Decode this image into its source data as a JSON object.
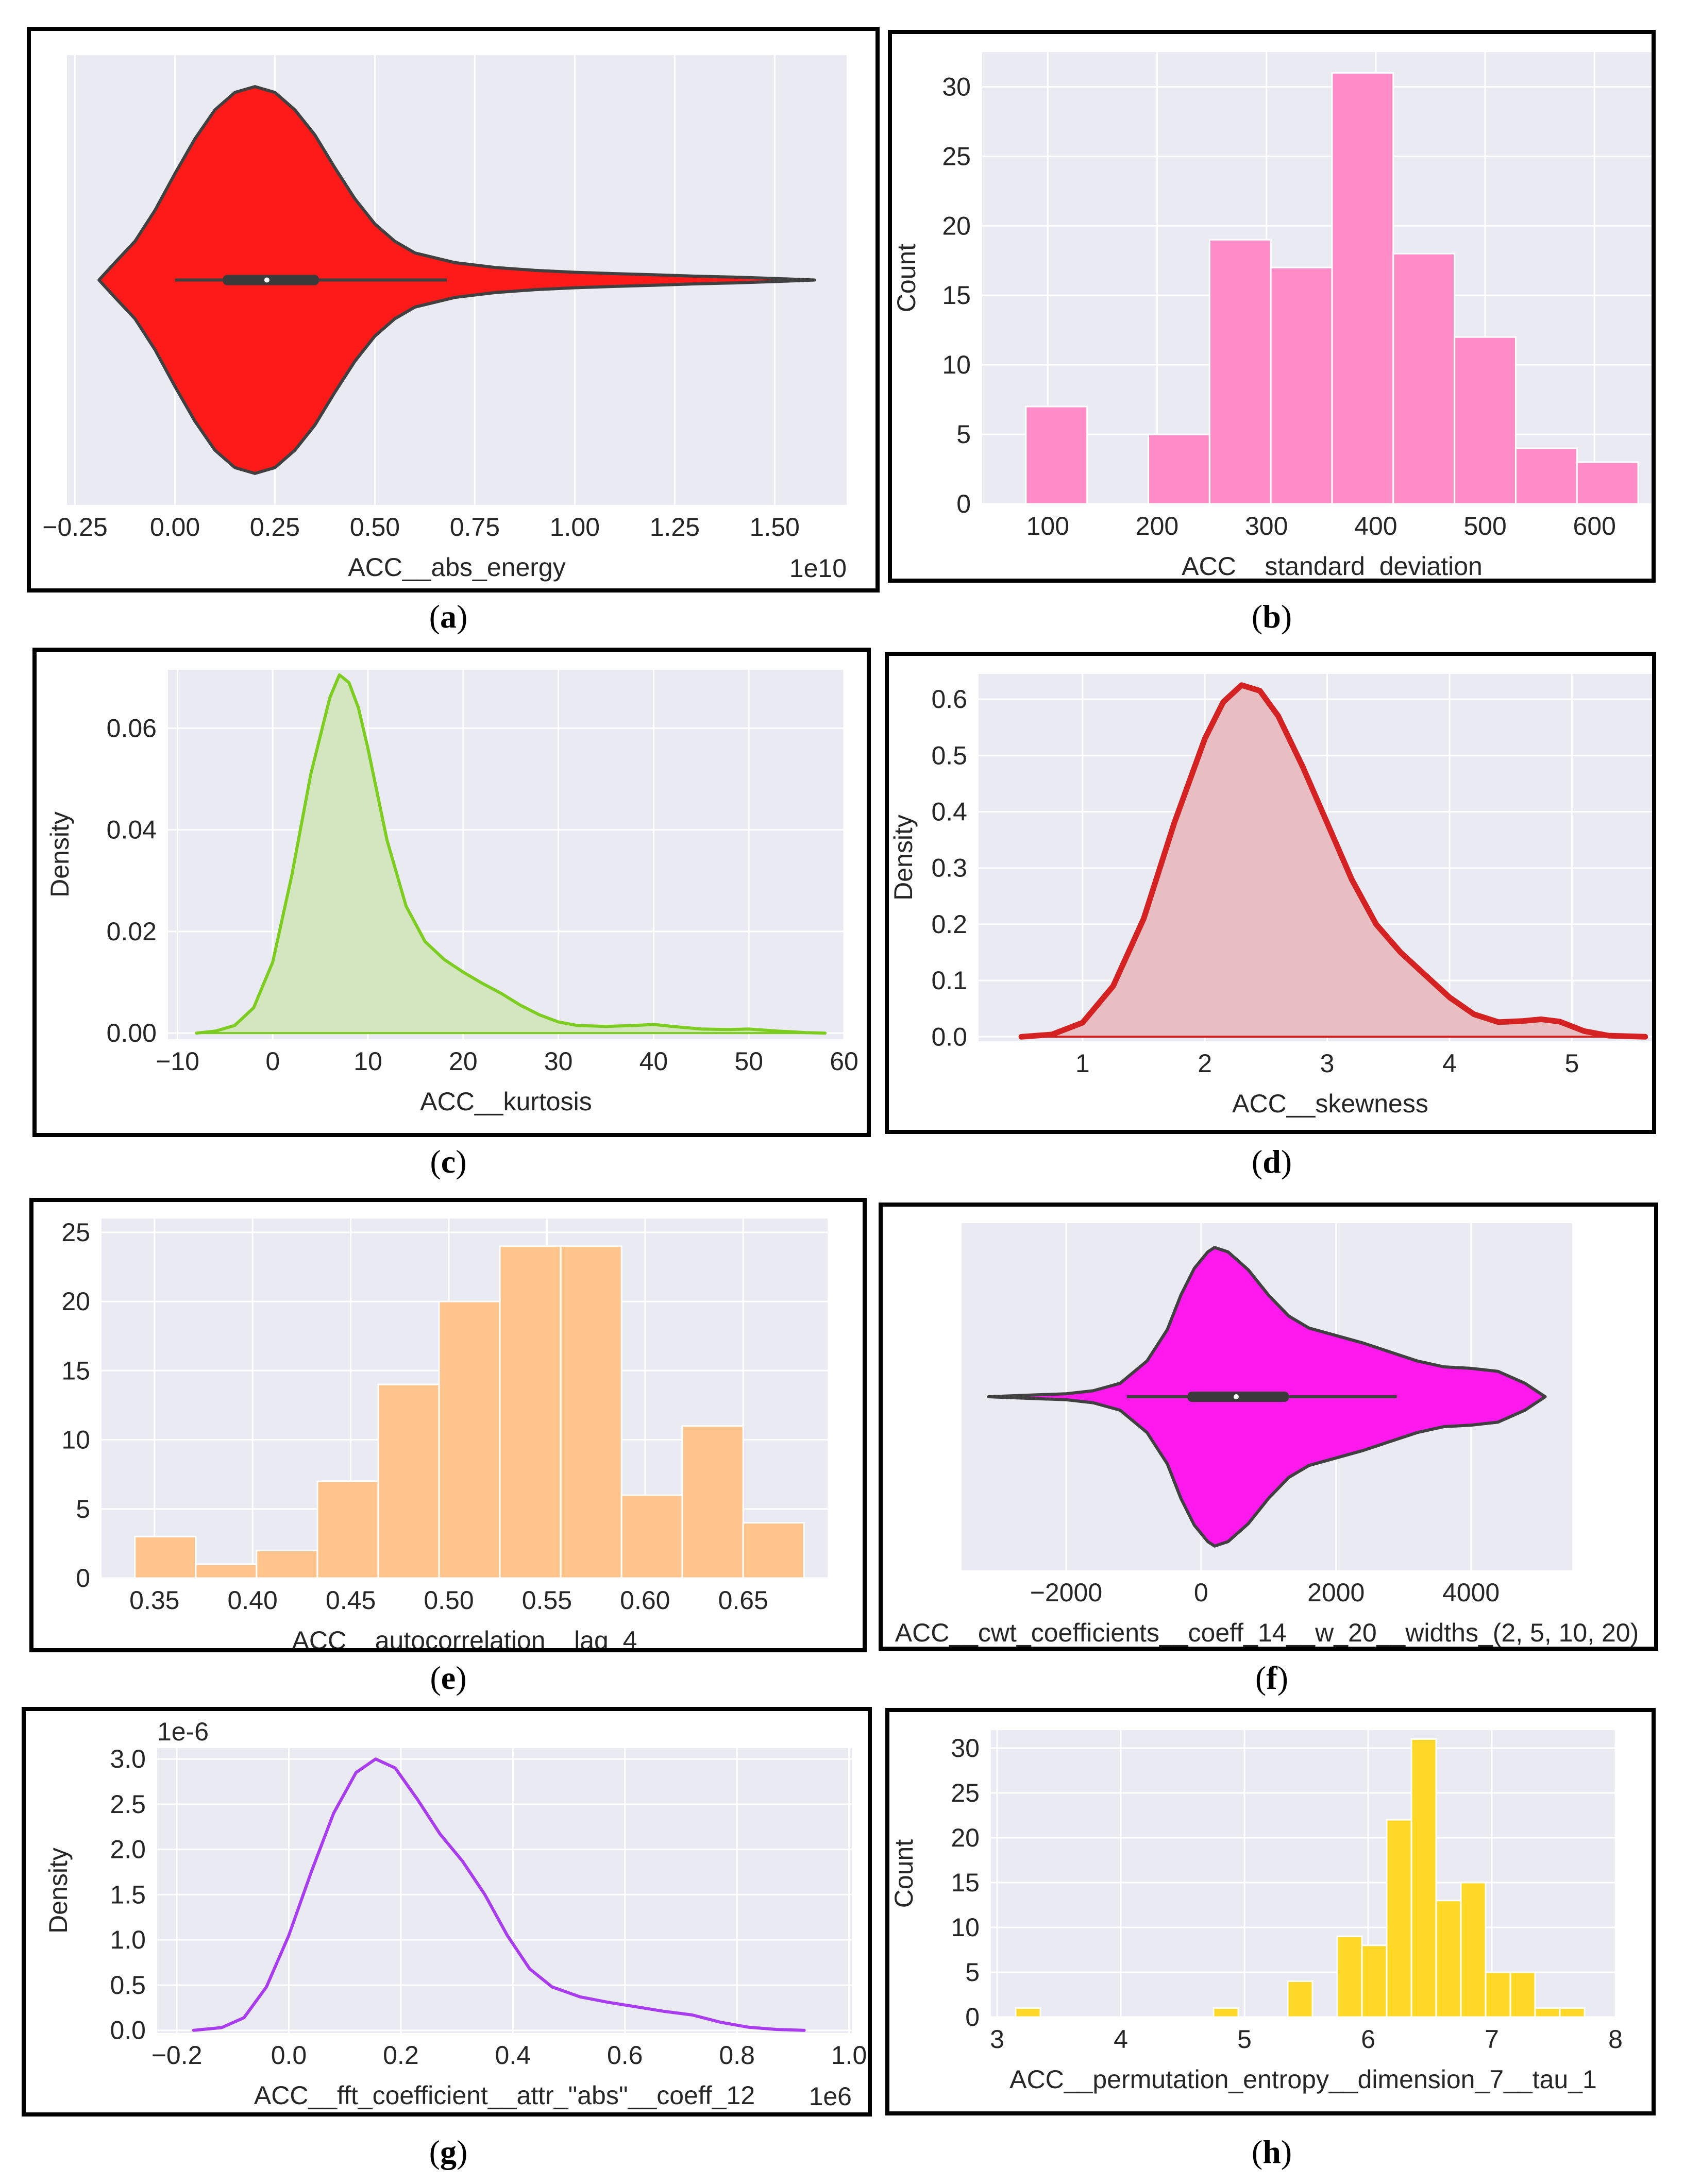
{
  "panel_labels": [
    {
      "open": "(",
      "letter": "a",
      "close": ")"
    },
    {
      "open": "(",
      "letter": "b",
      "close": ")"
    },
    {
      "open": "(",
      "letter": "c",
      "close": ")"
    },
    {
      "open": "(",
      "letter": "d",
      "close": ")"
    },
    {
      "open": "(",
      "letter": "e",
      "close": ")"
    },
    {
      "open": "(",
      "letter": "f",
      "close": ")"
    },
    {
      "open": "(",
      "letter": "g",
      "close": ")"
    },
    {
      "open": "(",
      "letter": "h",
      "close": ")"
    }
  ],
  "chart_data": [
    {
      "id": "a",
      "type": "violin",
      "orientation": "horizontal",
      "xlabel": "ACC__abs_energy",
      "ylabel": "",
      "offset_text": "1e10",
      "xlim": [
        -0.27,
        1.68
      ],
      "ylim": [
        -1,
        1
      ],
      "xticks": [
        -0.25,
        0.0,
        0.25,
        0.5,
        0.75,
        1.0,
        1.25,
        1.5
      ],
      "xtick_labels": [
        "−0.25",
        "0.00",
        "0.25",
        "0.50",
        "0.75",
        "1.00",
        "1.25",
        "1.50"
      ],
      "grid": true,
      "color": "#FF1A1A",
      "profile": [
        [
          -0.19,
          0.0
        ],
        [
          -0.15,
          0.09
        ],
        [
          -0.1,
          0.2
        ],
        [
          -0.05,
          0.36
        ],
        [
          0.0,
          0.55
        ],
        [
          0.05,
          0.73
        ],
        [
          0.1,
          0.88
        ],
        [
          0.15,
          0.97
        ],
        [
          0.2,
          1.0
        ],
        [
          0.25,
          0.97
        ],
        [
          0.3,
          0.88
        ],
        [
          0.35,
          0.75
        ],
        [
          0.4,
          0.58
        ],
        [
          0.45,
          0.42
        ],
        [
          0.5,
          0.29
        ],
        [
          0.55,
          0.2
        ],
        [
          0.6,
          0.14
        ],
        [
          0.7,
          0.09
        ],
        [
          0.8,
          0.065
        ],
        [
          0.9,
          0.05
        ],
        [
          1.0,
          0.04
        ],
        [
          1.1,
          0.033
        ],
        [
          1.2,
          0.027
        ],
        [
          1.3,
          0.02
        ],
        [
          1.4,
          0.015
        ],
        [
          1.5,
          0.008
        ],
        [
          1.6,
          0.0
        ]
      ],
      "whisker": [
        0.0,
        0.68
      ],
      "box": [
        0.12,
        0.36
      ],
      "median": 0.23
    },
    {
      "id": "b",
      "type": "histogram",
      "xlabel": "ACC__standard_deviation",
      "ylabel": "Count",
      "xlim": [
        40,
        680
      ],
      "ylim": [
        0,
        32.5
      ],
      "xticks": [
        100,
        200,
        300,
        400,
        500,
        600
      ],
      "xtick_labels": [
        "100",
        "200",
        "300",
        "400",
        "500",
        "600"
      ],
      "yticks": [
        0,
        5,
        10,
        15,
        20,
        25,
        30
      ],
      "ytick_labels": [
        "0",
        "5",
        "10",
        "15",
        "20",
        "25",
        "30"
      ],
      "grid": true,
      "color": "#FF8CC6",
      "bin_edges": [
        80,
        136,
        192,
        248,
        304,
        360,
        416,
        472,
        528,
        584,
        640
      ],
      "counts": [
        7,
        0,
        5,
        19,
        17,
        31,
        18,
        12,
        4,
        3
      ]
    },
    {
      "id": "c",
      "type": "kde",
      "xlabel": "ACC__kurtosis",
      "ylabel": "Density",
      "xlim": [
        -11,
        60
      ],
      "ylim": [
        -0.0012,
        0.0715
      ],
      "xticks": [
        -10,
        0,
        10,
        20,
        30,
        40,
        50,
        60
      ],
      "xtick_labels": [
        "−10",
        "0",
        "10",
        "20",
        "30",
        "40",
        "50",
        "60"
      ],
      "yticks": [
        0.0,
        0.02,
        0.04,
        0.06
      ],
      "ytick_labels": [
        "0.00",
        "0.02",
        "0.04",
        "0.06"
      ],
      "grid": true,
      "color": "#7CCD1F",
      "fill": "#D3E6BF",
      "x": [
        -8,
        -6,
        -4,
        -2,
        0,
        2,
        4,
        6,
        7,
        8,
        9,
        10,
        11,
        12,
        14,
        16,
        18,
        20,
        22,
        24,
        26,
        28,
        30,
        32,
        35,
        38,
        40,
        42,
        45,
        48,
        50,
        53,
        56,
        58
      ],
      "y": [
        0.0,
        0.0004,
        0.0015,
        0.005,
        0.014,
        0.031,
        0.051,
        0.066,
        0.0705,
        0.069,
        0.064,
        0.056,
        0.047,
        0.038,
        0.025,
        0.018,
        0.0145,
        0.012,
        0.0098,
        0.0078,
        0.0055,
        0.0036,
        0.0022,
        0.0015,
        0.0013,
        0.0015,
        0.0017,
        0.0013,
        0.0008,
        0.0007,
        0.0008,
        0.0004,
        0.0001,
        0.0
      ]
    },
    {
      "id": "d",
      "type": "kde",
      "xlabel": "ACC__skewness",
      "ylabel": "Density",
      "xlim": [
        0.15,
        5.9
      ],
      "ylim": [
        -0.008,
        0.645
      ],
      "xticks": [
        1,
        2,
        3,
        4,
        5
      ],
      "xtick_labels": [
        "1",
        "2",
        "3",
        "4",
        "5"
      ],
      "yticks": [
        0.0,
        0.1,
        0.2,
        0.3,
        0.4,
        0.5,
        0.6
      ],
      "ytick_labels": [
        "0.0",
        "0.1",
        "0.2",
        "0.3",
        "0.4",
        "0.5",
        "0.6"
      ],
      "grid": true,
      "color": "#D42121",
      "fill": "#E8BEC3",
      "x": [
        0.5,
        0.75,
        1.0,
        1.25,
        1.5,
        1.75,
        2.0,
        2.15,
        2.3,
        2.45,
        2.6,
        2.8,
        3.0,
        3.2,
        3.4,
        3.6,
        3.8,
        4.0,
        4.2,
        4.4,
        4.6,
        4.75,
        4.9,
        5.1,
        5.3,
        5.6
      ],
      "y": [
        0.0,
        0.004,
        0.025,
        0.09,
        0.21,
        0.38,
        0.53,
        0.595,
        0.625,
        0.615,
        0.57,
        0.48,
        0.38,
        0.28,
        0.2,
        0.15,
        0.11,
        0.07,
        0.04,
        0.026,
        0.028,
        0.031,
        0.027,
        0.01,
        0.002,
        0.0
      ]
    },
    {
      "id": "e",
      "type": "histogram",
      "xlabel": "ACC__autocorrelation__lag_4",
      "ylabel": "",
      "xlim": [
        0.323,
        0.693
      ],
      "ylim": [
        0,
        26
      ],
      "xticks": [
        0.35,
        0.4,
        0.45,
        0.5,
        0.55,
        0.6,
        0.65
      ],
      "xtick_labels": [
        "0.35",
        "0.40",
        "0.45",
        "0.50",
        "0.55",
        "0.60",
        "0.65"
      ],
      "yticks": [
        0,
        5,
        10,
        15,
        20,
        25
      ],
      "ytick_labels": [
        "0",
        "5",
        "10",
        "15",
        "20",
        "25"
      ],
      "grid": true,
      "color": "#FFC48C",
      "bin_edges": [
        0.34,
        0.371,
        0.402,
        0.433,
        0.464,
        0.495,
        0.526,
        0.557,
        0.588,
        0.619,
        0.65,
        0.681
      ],
      "counts": [
        3,
        1,
        2,
        7,
        14,
        20,
        24,
        24,
        6,
        11,
        4
      ]
    },
    {
      "id": "f",
      "type": "violin",
      "orientation": "horizontal",
      "xlabel": "ACC__cwt_coefficients__coeff_14__w_20__widths_(2, 5, 10, 20)",
      "ylabel": "",
      "offset_text": "",
      "xlim": [
        -3550,
        5500
      ],
      "ylim": [
        -1,
        1
      ],
      "xticks": [
        -2000,
        0,
        2000,
        4000
      ],
      "xtick_labels": [
        "−2000",
        "0",
        "2000",
        "4000"
      ],
      "grid": true,
      "color": "#FF19EC",
      "profile": [
        [
          -3150,
          0.0
        ],
        [
          -2600,
          0.01
        ],
        [
          -2000,
          0.02
        ],
        [
          -1600,
          0.04
        ],
        [
          -1200,
          0.09
        ],
        [
          -800,
          0.24
        ],
        [
          -500,
          0.45
        ],
        [
          -300,
          0.68
        ],
        [
          -100,
          0.86
        ],
        [
          100,
          0.97
        ],
        [
          200,
          1.0
        ],
        [
          400,
          0.97
        ],
        [
          700,
          0.85
        ],
        [
          1000,
          0.68
        ],
        [
          1300,
          0.54
        ],
        [
          1600,
          0.46
        ],
        [
          2000,
          0.41
        ],
        [
          2400,
          0.36
        ],
        [
          2800,
          0.3
        ],
        [
          3200,
          0.24
        ],
        [
          3600,
          0.2
        ],
        [
          4000,
          0.19
        ],
        [
          4400,
          0.17
        ],
        [
          4800,
          0.09
        ],
        [
          5100,
          0.0
        ]
      ],
      "whisker": [
        -1100,
        2900
      ],
      "box": [
        -200,
        1300
      ],
      "median": 520
    },
    {
      "id": "g",
      "type": "kde",
      "xlabel": "ACC__fft_coefficient__attr_\"abs\"__coeff_12",
      "ylabel": "Density",
      "offset_text_x": "1e6",
      "offset_text_y": "1e-6",
      "xlim": [
        -0.235,
        1.005
      ],
      "ylim": [
        -0.03,
        3.12
      ],
      "xticks": [
        -0.2,
        0.0,
        0.2,
        0.4,
        0.6,
        0.8,
        1.0
      ],
      "xtick_labels": [
        "−0.2",
        "0.0",
        "0.2",
        "0.4",
        "0.6",
        "0.8",
        "1.0"
      ],
      "yticks": [
        0.0,
        0.5,
        1.0,
        1.5,
        2.0,
        2.5,
        3.0
      ],
      "ytick_labels": [
        "0.0",
        "0.5",
        "1.0",
        "1.5",
        "2.0",
        "2.5",
        "3.0"
      ],
      "grid": true,
      "color": "#A93CF0",
      "x": [
        -0.17,
        -0.12,
        -0.08,
        -0.04,
        0.0,
        0.04,
        0.08,
        0.12,
        0.155,
        0.19,
        0.23,
        0.27,
        0.31,
        0.35,
        0.39,
        0.43,
        0.47,
        0.52,
        0.57,
        0.62,
        0.67,
        0.72,
        0.77,
        0.82,
        0.87,
        0.92
      ],
      "y": [
        0.0,
        0.03,
        0.14,
        0.48,
        1.05,
        1.75,
        2.4,
        2.85,
        3.0,
        2.9,
        2.55,
        2.17,
        1.87,
        1.5,
        1.05,
        0.68,
        0.48,
        0.37,
        0.31,
        0.26,
        0.21,
        0.17,
        0.09,
        0.035,
        0.01,
        0.0
      ]
    },
    {
      "id": "h",
      "type": "histogram",
      "xlabel": "ACC__permutation_entropy__dimension_7__tau_1",
      "ylabel": "Count",
      "xlim": [
        2.95,
        8.0
      ],
      "ylim": [
        0,
        32
      ],
      "xticks": [
        3,
        4,
        5,
        6,
        7,
        8
      ],
      "xtick_labels": [
        "3",
        "4",
        "5",
        "6",
        "7",
        "8"
      ],
      "yticks": [
        0,
        5,
        10,
        15,
        20,
        25,
        30
      ],
      "ytick_labels": [
        "0",
        "5",
        "10",
        "15",
        "20",
        "25",
        "30"
      ],
      "grid": true,
      "color": "#FFD726",
      "bin_edges": [
        3.15,
        3.35,
        3.55,
        3.75,
        3.95,
        4.15,
        4.35,
        4.55,
        4.75,
        4.95,
        5.15,
        5.35,
        5.55,
        5.75,
        5.95,
        6.15,
        6.35,
        6.55,
        6.75,
        6.95,
        7.15,
        7.35,
        7.55,
        7.75
      ],
      "counts": [
        1,
        0,
        0,
        0,
        0,
        0,
        0,
        0,
        1,
        0,
        0,
        4,
        0,
        9,
        8,
        22,
        31,
        13,
        15,
        5,
        5,
        1,
        1
      ]
    }
  ]
}
